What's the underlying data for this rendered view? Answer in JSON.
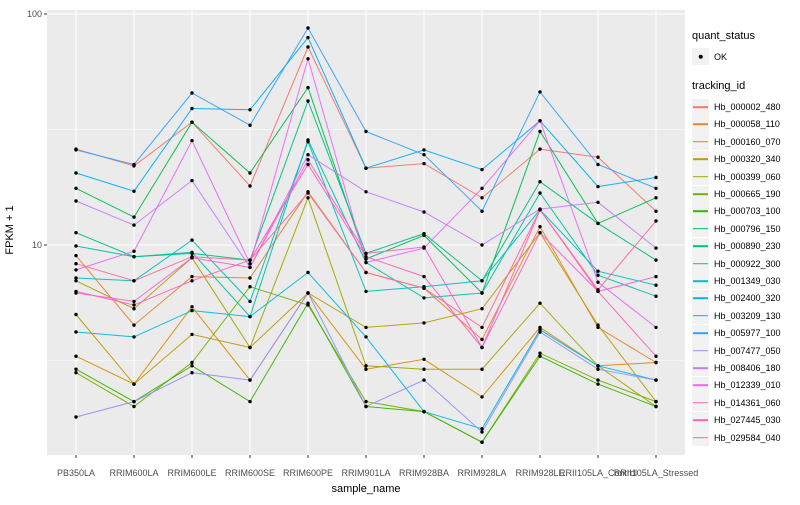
{
  "legend": {
    "quant_status_title": "quant_status",
    "quant_status_items": [
      {
        "label": "OK"
      }
    ],
    "tracking_id_title": "tracking_id"
  },
  "style_colors": {
    "background": "#FFFFFF",
    "panel_background": "#EBEBEB",
    "gridline": "#FFFFFF",
    "legend_key_background": "#F2F2F2",
    "axis_text": "#4D4D4D",
    "axis_title": "#000000",
    "point": "#000000",
    "tick_mark": "#333333"
  },
  "chart_data": {
    "type": "line",
    "title": "",
    "xlabel": "sample_name",
    "ylabel": "FPKM + 1",
    "y_scale": "log10",
    "ylim": [
      1.2,
      104
    ],
    "y_major_ticks": [
      100,
      10
    ],
    "y_minor_gridlines": [
      31.62,
      3.162
    ],
    "grid": true,
    "legend_position": "right",
    "points": "black dot on every value, legend quant_status OK",
    "categories": [
      "PB350LA",
      "RRIM600LA",
      "RRIM600LE",
      "RRIM600SE",
      "RRIM600PE",
      "RRIM901LA",
      "RRIM928BA",
      "RRIM928LA",
      "RRIM928LE",
      "RRII105LA_Control",
      "RRII105LA_Stressed"
    ],
    "series": [
      {
        "name": "Hb_000002_480",
        "color": "#F8766D",
        "values": [
          26,
          22,
          34,
          18,
          72,
          21.5,
          22.5,
          16,
          26,
          24,
          14
        ]
      },
      {
        "name": "Hb_000058_110",
        "color": "#EA8331",
        "values": [
          9.0,
          4.5,
          7.3,
          7.2,
          17,
          7.6,
          6.5,
          3.9,
          12,
          4.4,
          3.1
        ]
      },
      {
        "name": "Hb_000160_070",
        "color": "#D89000",
        "values": [
          3.3,
          2.5,
          5.4,
          2.6,
          6.2,
          2.9,
          3.2,
          2.2,
          4.4,
          3.0,
          3.1
        ]
      },
      {
        "name": "Hb_000320_340",
        "color": "#C09B00",
        "values": [
          5.0,
          2.5,
          4.1,
          3.6,
          6.2,
          4.4,
          4.6,
          5.3,
          11.3,
          4.5,
          2.1
        ]
      },
      {
        "name": "Hb_000399_060",
        "color": "#A3A500",
        "values": [
          7.0,
          5.3,
          8.8,
          3.6,
          16,
          3.0,
          2.9,
          2.9,
          5.6,
          3.0,
          2.0
        ]
      },
      {
        "name": "Hb_000665_190",
        "color": "#7CAE00",
        "values": [
          2.8,
          2.0,
          3.1,
          6.6,
          5.5,
          2.1,
          1.9,
          1.4,
          3.4,
          2.6,
          2.1
        ]
      },
      {
        "name": "Hb_000703_100",
        "color": "#39B600",
        "values": [
          2.9,
          2.1,
          3.0,
          2.1,
          5.6,
          2.0,
          1.9,
          1.4,
          3.3,
          2.5,
          2.0
        ]
      },
      {
        "name": "Hb_000796_150",
        "color": "#00BB4E",
        "values": [
          17.6,
          13.2,
          34,
          20.5,
          48,
          8.7,
          11,
          6.2,
          31,
          12.4,
          16
        ]
      },
      {
        "name": "Hb_000890_230",
        "color": "#00BF7D",
        "values": [
          11.3,
          8.9,
          9.2,
          8.6,
          42,
          9.2,
          11.2,
          7.0,
          18.8,
          12.4,
          8.6
        ]
      },
      {
        "name": "Hb_000922_300",
        "color": "#00C1A3",
        "values": [
          9.9,
          8.9,
          9.3,
          4.9,
          28.5,
          8.4,
          5.9,
          6.2,
          16.8,
          7.4,
          6.0
        ]
      },
      {
        "name": "Hb_001349_030",
        "color": "#00BFC4",
        "values": [
          7.2,
          7.0,
          10.5,
          5.7,
          28,
          6.3,
          6.6,
          7.0,
          14.2,
          7.7,
          6.7
        ]
      },
      {
        "name": "Hb_002400_320",
        "color": "#00BAE0",
        "values": [
          4.2,
          4.0,
          5.2,
          4.9,
          7.6,
          4.0,
          1.9,
          1.6,
          4.3,
          3.0,
          2.6
        ]
      },
      {
        "name": "Hb_003209_130",
        "color": "#00B0F6",
        "values": [
          20.5,
          17.1,
          39,
          38.5,
          79,
          21.5,
          25.8,
          21.2,
          34.5,
          17.9,
          19.6
        ]
      },
      {
        "name": "Hb_005977_100",
        "color": "#35A2FF",
        "values": [
          25.8,
          22.3,
          45.5,
          33,
          87,
          31,
          24.6,
          14,
          46,
          22.3,
          17.6
        ]
      },
      {
        "name": "Hb_007477_050",
        "color": "#9590FF",
        "values": [
          1.8,
          2.1,
          2.8,
          2.6,
          6.2,
          2.0,
          2.6,
          1.55,
          4.2,
          2.9,
          2.6
        ]
      },
      {
        "name": "Hb_008406_180",
        "color": "#C77CFF",
        "values": [
          15.5,
          12.2,
          19,
          8.0,
          24.6,
          17,
          13.9,
          10,
          14.3,
          15.3,
          9.7
        ]
      },
      {
        "name": "Hb_012339_010",
        "color": "#E76BF3",
        "values": [
          7.8,
          9.4,
          28.3,
          8.3,
          64,
          8.4,
          9.7,
          17.6,
          34.5,
          6.9,
          4.4
        ]
      },
      {
        "name": "Hb_014361_060",
        "color": "#FA62DB",
        "values": [
          6.2,
          5.7,
          8.8,
          8.0,
          23.4,
          9.2,
          9.8,
          3.6,
          11.3,
          6.3,
          7.3
        ]
      },
      {
        "name": "Hb_027445_030",
        "color": "#FF62BC",
        "values": [
          6.3,
          5.5,
          7.0,
          8.6,
          22.3,
          8.9,
          7.3,
          3.6,
          14.2,
          6.3,
          3.3
        ]
      },
      {
        "name": "Hb_029584_040",
        "color": "#FF6A98",
        "values": [
          8.3,
          7.0,
          8.9,
          8.6,
          16.8,
          7.6,
          6.5,
          4.4,
          14.2,
          6.4,
          12.7
        ]
      }
    ]
  }
}
